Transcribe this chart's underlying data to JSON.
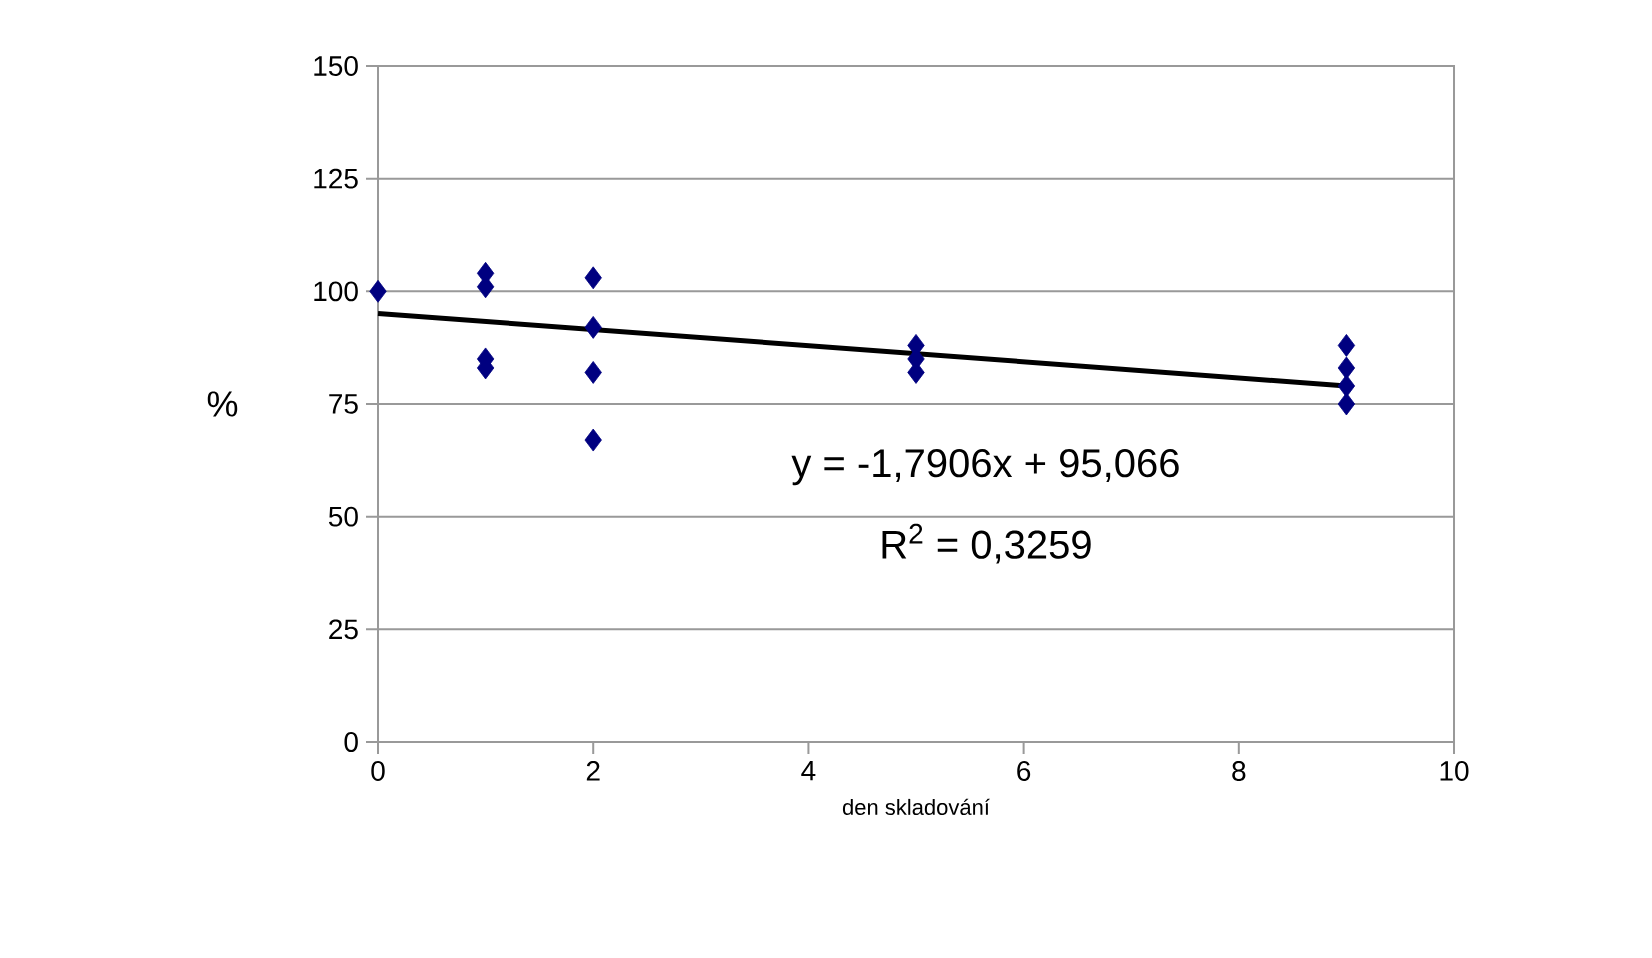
{
  "chart_data": {
    "type": "scatter",
    "xlabel": "den skladování",
    "ylabel": "%",
    "series": [
      {
        "color": "#000080",
        "marker": "diamond",
        "x": [
          0,
          1,
          1,
          1,
          1,
          2,
          2,
          2,
          2,
          5,
          5,
          5,
          9,
          9,
          9,
          9
        ],
        "values": [
          100,
          104,
          101,
          85,
          83,
          103,
          92,
          82,
          67,
          88,
          85,
          82,
          88,
          83,
          79,
          75
        ]
      },
      {
        "type": "line",
        "color": "#000000",
        "marker": "none",
        "x": [
          0,
          9
        ],
        "values": [
          95.1,
          79
        ]
      }
    ],
    "annotations": [
      "y = -1,7906x + 95,066",
      "R$^{2}$ = 0,3259"
    ],
    "xlim": [
      0,
      10
    ],
    "xticks": [
      0,
      2,
      4,
      6,
      8,
      10
    ],
    "ylim": [
      0,
      150
    ],
    "yticks": [
      0,
      25,
      50,
      75,
      100,
      125,
      150
    ],
    "grid": "y"
  }
}
